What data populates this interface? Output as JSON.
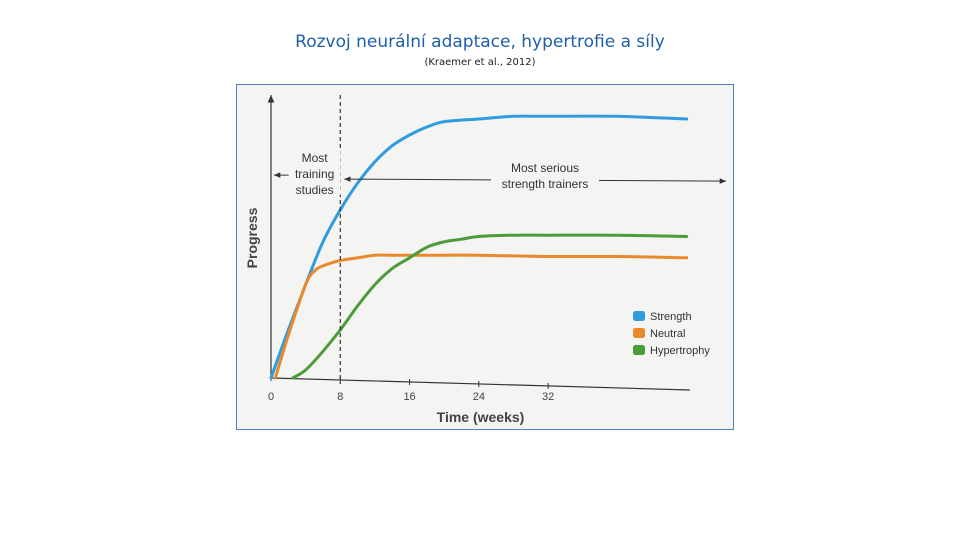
{
  "slide": {
    "title": "Rozvoj neurální adaptace, hypertrofie a síly",
    "subtitle": "(Kraemer et al., 2012)"
  },
  "chart_data": {
    "type": "line",
    "xlabel": "Time (weeks)",
    "ylabel": "Progress",
    "xlim": [
      0,
      53
    ],
    "ylim": [
      0,
      100
    ],
    "xticks": [
      0,
      8,
      16,
      24,
      32
    ],
    "grid": false,
    "legend_position": "bottom-right",
    "series": [
      {
        "name": "Strength",
        "color": "#2f9be0",
        "x": [
          0,
          2,
          4,
          6,
          8,
          10,
          12,
          14,
          16,
          18,
          20,
          24,
          28,
          32,
          40,
          48
        ],
        "y": [
          0,
          18,
          35,
          51,
          63,
          73,
          81,
          87,
          91,
          94,
          96,
          97,
          98,
          98,
          98,
          97
        ]
      },
      {
        "name": "Neutral",
        "color": "#e8892b",
        "x": [
          0.5,
          2,
          4,
          5,
          6,
          8,
          10,
          12,
          14,
          16,
          20,
          24,
          32,
          40,
          48
        ],
        "y": [
          0,
          16,
          35,
          40,
          42,
          44,
          45,
          46,
          46,
          46,
          46,
          46,
          45.5,
          45.5,
          45
        ]
      },
      {
        "name": "Hypertrophy",
        "color": "#4c9b3b",
        "x": [
          2.5,
          4,
          6,
          8,
          10,
          12,
          14,
          16,
          18,
          20,
          22,
          24,
          28,
          32,
          40,
          48
        ],
        "y": [
          0,
          3,
          10,
          18,
          27,
          35,
          41,
          45,
          49,
          51,
          52,
          53,
          53.5,
          53.5,
          53.5,
          53
        ]
      }
    ],
    "annotations": {
      "divider_week": 8,
      "left_label": [
        "Most",
        "training",
        "studies"
      ],
      "right_label": [
        "Most serious",
        "strength trainers"
      ],
      "arrow_level": 76
    }
  }
}
